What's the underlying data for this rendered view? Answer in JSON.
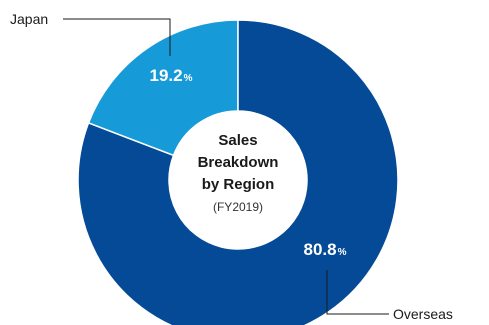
{
  "chart_data": {
    "type": "pie",
    "donut": true,
    "title_lines": [
      "Sales",
      "Breakdown",
      "by Region"
    ],
    "subtitle": "(FY2019)",
    "slices": [
      {
        "label": "Japan",
        "value": 19.2,
        "value_number": "19.2",
        "unit": "%",
        "color": "#169bd8"
      },
      {
        "label": "Overseas",
        "value": 80.8,
        "value_number": "80.8",
        "unit": "%",
        "color": "#054a97"
      }
    ]
  }
}
